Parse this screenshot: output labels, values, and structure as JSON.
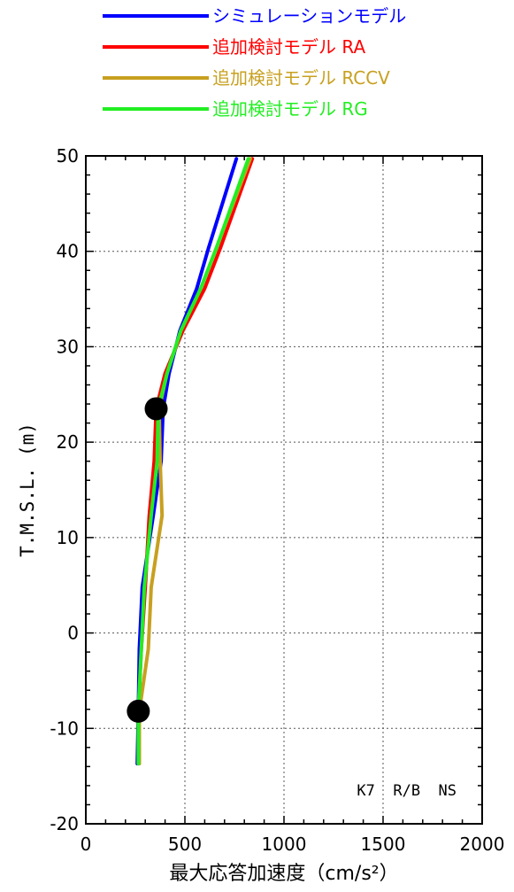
{
  "chart_data": {
    "type": "line",
    "xlabel": "最大応答加速度（cm/s²）",
    "ylabel": "T.M.S.L. (m)",
    "xlim": [
      0,
      2000
    ],
    "ylim": [
      -20,
      50
    ],
    "x_ticks": [
      "0",
      "500",
      "1000",
      "1500",
      "2000"
    ],
    "y_ticks": [
      "-20",
      "-10",
      "0",
      "10",
      "20",
      "30",
      "40",
      "50"
    ],
    "grid": true,
    "legend_position": "top",
    "annotation": "K7  R/B  NS",
    "series": [
      {
        "name": "シミュレーションモデル",
        "color": "#0000ff",
        "points": [
          [
            260,
            -13.7
          ],
          [
            265,
            -8.2
          ],
          [
            270,
            -1.7
          ],
          [
            285,
            4.8
          ],
          [
            340,
            12.3
          ],
          [
            380,
            18.0
          ],
          [
            390,
            23.5
          ],
          [
            420,
            27.2
          ],
          [
            475,
            31.7
          ],
          [
            560,
            36.1
          ],
          [
            620,
            40.4
          ],
          [
            760,
            49.7
          ]
        ]
      },
      {
        "name": "追加検討モデル RA",
        "color": "#ff0000",
        "points": [
          [
            265,
            -13.7
          ],
          [
            265,
            -8.2
          ],
          [
            280,
            -1.7
          ],
          [
            300,
            4.8
          ],
          [
            320,
            12.3
          ],
          [
            345,
            18.0
          ],
          [
            355,
            23.5
          ],
          [
            400,
            27.2
          ],
          [
            490,
            31.7
          ],
          [
            600,
            36.1
          ],
          [
            680,
            40.4
          ],
          [
            840,
            49.7
          ]
        ]
      },
      {
        "name": "追加検討モデル RCCV",
        "color": "#c8a020",
        "points": [
          [
            270,
            -13.7
          ],
          [
            270,
            -8.2
          ],
          [
            315,
            -1.7
          ],
          [
            330,
            4.8
          ],
          [
            385,
            12.3
          ],
          [
            375,
            18.0
          ],
          [
            370,
            23.5
          ],
          [
            410,
            27.2
          ],
          [
            480,
            31.7
          ],
          [
            580,
            36.1
          ],
          [
            660,
            40.4
          ],
          [
            830,
            49.7
          ]
        ]
      },
      {
        "name": "追加検討モデル RG",
        "color": "#22ee22",
        "points": [
          [
            265,
            -13.7
          ],
          [
            265,
            -8.2
          ],
          [
            280,
            -1.7
          ],
          [
            295,
            4.8
          ],
          [
            330,
            12.3
          ],
          [
            360,
            18.0
          ],
          [
            365,
            23.5
          ],
          [
            410,
            27.2
          ],
          [
            480,
            31.7
          ],
          [
            580,
            36.1
          ],
          [
            660,
            40.4
          ],
          [
            820,
            49.7
          ]
        ]
      }
    ],
    "markers": [
      [
        355,
        23.5
      ],
      [
        265,
        -8.2
      ]
    ]
  }
}
